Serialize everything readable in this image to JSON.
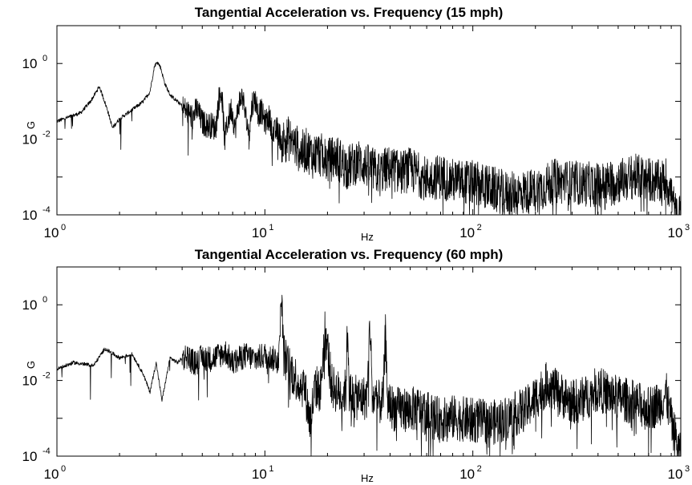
{
  "chart_data": [
    {
      "type": "line",
      "title": "Tangential Acceleration vs. Frequency (15 mph)",
      "xlabel": "Hz",
      "ylabel": "G",
      "xscale": "log",
      "yscale": "log",
      "xlim": [
        1,
        1000
      ],
      "ylim": [
        0.0001,
        10
      ],
      "x_tick_labels": [
        {
          "base": "10",
          "exp": "0"
        },
        {
          "base": "10",
          "exp": "1"
        },
        {
          "base": "10",
          "exp": "2"
        },
        {
          "base": "10",
          "exp": "3"
        }
      ],
      "y_tick_labels": [
        {
          "base": "10",
          "exp": "-4"
        },
        {
          "base": "10",
          "exp": "-2"
        },
        {
          "base": "10",
          "exp": "0"
        }
      ],
      "grid": false,
      "series": [
        {
          "x": [
            1,
            1.3,
            1.45,
            1.6,
            1.75,
            1.85,
            2.0,
            2.3,
            2.6,
            2.8,
            2.95,
            3.05,
            3.15,
            3.3,
            3.5,
            3.8,
            4.2,
            4.5,
            4.7,
            5.0,
            5.3,
            5.6,
            5.8,
            6.0,
            6.2,
            6.4,
            6.6,
            6.9,
            7.2,
            7.5,
            7.8,
            8.1,
            8.4,
            8.7,
            9.0,
            9.3,
            9.6,
            10,
            10.5,
            11,
            11.5,
            12,
            13,
            14,
            15,
            16,
            17,
            18,
            20,
            22,
            25,
            28,
            30,
            35,
            40,
            45,
            50,
            60,
            70,
            80,
            100,
            120,
            150,
            200,
            250,
            300,
            400,
            500,
            600,
            700,
            800,
            850,
            900,
            950,
            1000
          ],
          "y": [
            0.03,
            0.05,
            0.1,
            0.25,
            0.06,
            0.02,
            0.035,
            0.06,
            0.1,
            0.18,
            0.9,
            1.1,
            0.8,
            0.3,
            0.15,
            0.1,
            0.06,
            0.04,
            0.07,
            0.03,
            0.025,
            0.025,
            0.02,
            0.12,
            0.2,
            0.01,
            0.03,
            0.07,
            0.02,
            0.1,
            0.15,
            0.04,
            0.015,
            0.1,
            0.12,
            0.05,
            0.06,
            0.03,
            0.04,
            0.015,
            0.02,
            0.01,
            0.012,
            0.008,
            0.005,
            0.006,
            0.004,
            0.005,
            0.003,
            0.004,
            0.002,
            0.003,
            0.0025,
            0.0015,
            0.002,
            0.0015,
            0.0018,
            0.001,
            0.0012,
            0.0009,
            0.0008,
            0.0006,
            0.0004,
            0.0005,
            0.0009,
            0.0008,
            0.0007,
            0.0009,
            0.0012,
            0.001,
            0.0008,
            0.001,
            0.0004,
            0.0001,
            0.0001
          ]
        }
      ]
    },
    {
      "type": "line",
      "title": "Tangential Acceleration vs. Frequency (60 mph)",
      "xlabel": "Hz",
      "ylabel": "G",
      "xscale": "log",
      "yscale": "log",
      "xlim": [
        1,
        1000
      ],
      "ylim": [
        0.0001,
        10
      ],
      "x_tick_labels": [
        {
          "base": "10",
          "exp": "0"
        },
        {
          "base": "10",
          "exp": "1"
        },
        {
          "base": "10",
          "exp": "2"
        },
        {
          "base": "10",
          "exp": "3"
        }
      ],
      "y_tick_labels": [
        {
          "base": "10",
          "exp": "-4"
        },
        {
          "base": "10",
          "exp": "-2"
        },
        {
          "base": "10",
          "exp": "0"
        }
      ],
      "grid": false,
      "series": [
        {
          "x": [
            1,
            1.2,
            1.5,
            1.7,
            2.0,
            2.3,
            2.6,
            2.8,
            3.0,
            3.2,
            3.5,
            3.8,
            4.2,
            4.6,
            5.0,
            5.5,
            6.0,
            6.5,
            7.0,
            8.0,
            9.0,
            10,
            11,
            11.7,
            12.0,
            12.3,
            12.8,
            13.5,
            14.5,
            15.5,
            16.5,
            17.5,
            18.5,
            19.5,
            21,
            23,
            24.5,
            25,
            25.5,
            27,
            29,
            31,
            32,
            33,
            35,
            37,
            38,
            39,
            42,
            48,
            55,
            70,
            80,
            100,
            130,
            180,
            230,
            250,
            300,
            350,
            400,
            450,
            500,
            600,
            700,
            800,
            850,
            900,
            950,
            1000
          ],
          "y": [
            0.02,
            0.03,
            0.025,
            0.07,
            0.04,
            0.05,
            0.015,
            0.005,
            0.03,
            0.003,
            0.04,
            0.03,
            0.05,
            0.03,
            0.045,
            0.04,
            0.05,
            0.06,
            0.03,
            0.05,
            0.04,
            0.05,
            0.04,
            0.05,
            2.2,
            0.06,
            0.03,
            0.02,
            0.01,
            0.008,
            0.0009,
            0.008,
            0.006,
            0.3,
            0.008,
            0.005,
            0.006,
            0.35,
            0.005,
            0.004,
            0.004,
            0.004,
            0.4,
            0.004,
            0.003,
            0.003,
            0.2,
            0.003,
            0.002,
            0.002,
            0.002,
            0.001,
            0.0012,
            0.001,
            0.0009,
            0.002,
            0.01,
            0.006,
            0.003,
            0.004,
            0.007,
            0.005,
            0.004,
            0.003,
            0.002,
            0.003,
            0.005,
            0.001,
            0.0003,
            0.0001
          ]
        }
      ]
    }
  ]
}
